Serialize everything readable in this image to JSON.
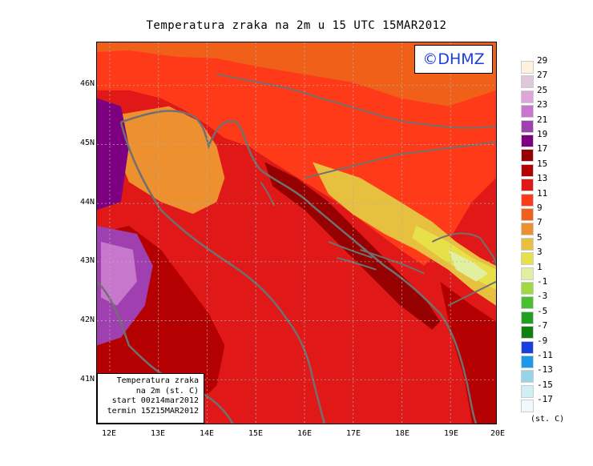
{
  "title": "Temperatura zraka na 2m u 15 UTC 15MAR2012",
  "logo": "©DHMZ",
  "info_box": {
    "line1": "Temperatura zraka",
    "line2": "na 2m (st. C)",
    "line3": "start 00z14mar2012",
    "line4": "termin 15Z15MAR2012"
  },
  "lat_labels": [
    "46N",
    "45N",
    "44N",
    "43N",
    "42N",
    "41N"
  ],
  "lon_labels": [
    "12E",
    "13E",
    "14E",
    "15E",
    "16E",
    "17E",
    "18E",
    "19E",
    "20E"
  ],
  "map_extent": {
    "lon": [
      11.8,
      20.0
    ],
    "lat": [
      40.25,
      46.75
    ]
  },
  "colorbar": {
    "units": "(st. C)",
    "levels": [
      "29",
      "27",
      "25",
      "23",
      "21",
      "19",
      "17",
      "15",
      "13",
      "11",
      "9",
      "7",
      "5",
      "3",
      "1",
      "-1",
      "-3",
      "-5",
      "-7",
      "-9",
      "-11",
      "-13",
      "-15",
      "-17"
    ],
    "colors": [
      "#fff0e0",
      "#e0c8dc",
      "#dca6d8",
      "#c878cc",
      "#a040b0",
      "#7c0080",
      "#960000",
      "#b40000",
      "#e01818",
      "#ff3a18",
      "#f06018",
      "#ec9030",
      "#e8c040",
      "#e8e048",
      "#e0f0a0",
      "#a0d840",
      "#48c030",
      "#20a020",
      "#108010",
      "#1840e0",
      "#1a9ae8",
      "#98d4e8",
      "#d0eef4",
      "#f0fafc"
    ]
  }
}
